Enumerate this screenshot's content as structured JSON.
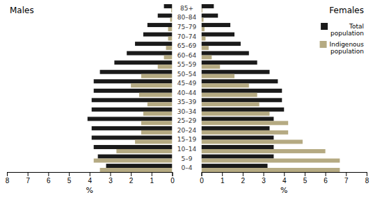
{
  "chart_data": [
    {
      "type": "bar",
      "orientation": "horizontal",
      "title": "Males",
      "xlabel": "%",
      "categories": [
        "0–4",
        "5–9",
        "10–14",
        "15–19",
        "20–24",
        "25–29",
        "30–34",
        "35–39",
        "40–44",
        "45–49",
        "50–54",
        "55–59",
        "60–64",
        "65–69",
        "70–74",
        "75–79",
        "80–84",
        "85+"
      ],
      "series": [
        {
          "color": "#1a1a1a",
          "values": [
            3.2,
            3.6,
            3.8,
            3.9,
            3.9,
            4.1,
            3.9,
            3.9,
            3.8,
            3.8,
            3.5,
            2.8,
            2.2,
            1.8,
            1.4,
            1.2,
            0.7,
            0.4
          ]
        },
        {
          "color": "#b5aa82",
          "values": [
            3.5,
            3.8,
            2.7,
            1.8,
            1.5,
            1.5,
            1.4,
            1.2,
            1.6,
            2.0,
            1.5,
            0.7,
            0.4,
            0.3,
            0.2,
            0.2,
            0.1,
            0.05
          ]
        }
      ],
      "xlim": [
        8,
        0
      ],
      "xticks": [
        8,
        7,
        6,
        5,
        4,
        3,
        2,
        1,
        0
      ]
    },
    {
      "type": "bar",
      "orientation": "horizontal",
      "title": "Females",
      "xlabel": "%",
      "categories": [
        "0–4",
        "5–9",
        "10–14",
        "15–19",
        "20–24",
        "25–29",
        "30–34",
        "35–39",
        "40–44",
        "45–49",
        "50–54",
        "55–59",
        "60–64",
        "65–69",
        "70–74",
        "75–79",
        "80–84",
        "85+"
      ],
      "series": [
        {
          "name": "Total\npopulation",
          "color": "#1a1a1a",
          "values": [
            3.2,
            3.5,
            3.5,
            3.5,
            3.3,
            3.5,
            4.0,
            3.9,
            3.9,
            3.7,
            3.3,
            2.7,
            2.3,
            1.9,
            1.6,
            1.4,
            0.8,
            0.6
          ]
        },
        {
          "name": "Indigenous\npopulation",
          "color": "#b5aa82",
          "values": [
            6.7,
            6.7,
            6.0,
            4.9,
            4.2,
            4.2,
            3.3,
            2.8,
            2.7,
            2.3,
            1.6,
            0.9,
            0.5,
            0.35,
            0.2,
            0.15,
            0.1,
            0.05
          ]
        }
      ],
      "xlim": [
        0,
        8
      ],
      "xticks": [
        0,
        1,
        2,
        3,
        4,
        5,
        6,
        7,
        8
      ],
      "legend": "upper right"
    }
  ]
}
